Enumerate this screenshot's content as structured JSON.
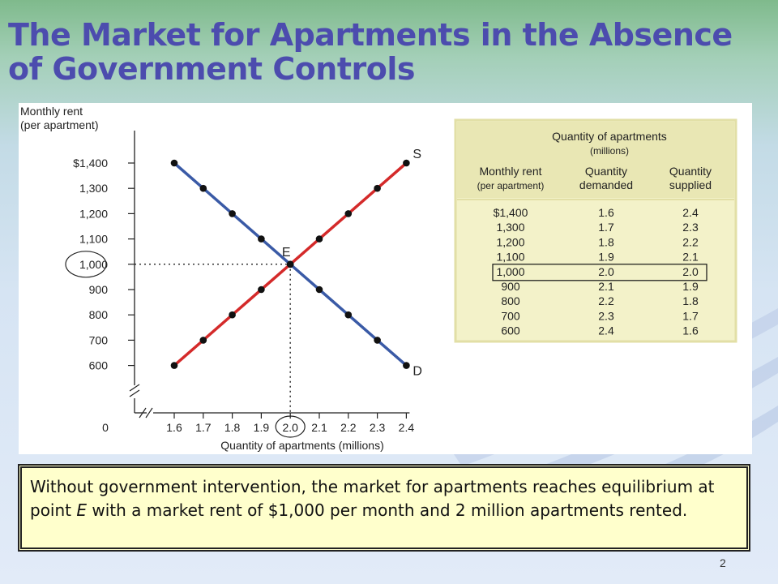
{
  "slide": {
    "title_line1": "The Market for Apartments in the Absence",
    "title_line2": "of Government Controls",
    "page_number": "2"
  },
  "caption": {
    "part1": "Without government intervention, the market for apartments reaches equilibrium at point ",
    "point": "E",
    "part2": " with a market rent of $1,000 per month and 2 million apartments rented."
  },
  "chart_data": [
    {
      "type": "line",
      "ylabel_line1": "Monthly rent",
      "ylabel_line2": "(per apartment)",
      "xlabel": "Quantity of apartments (millions)",
      "x_ticks": [
        "1.6",
        "1.7",
        "1.8",
        "1.9",
        "2.0",
        "2.1",
        "2.2",
        "2.3",
        "2.4"
      ],
      "y_ticks": [
        {
          "value": 600,
          "label": "600"
        },
        {
          "value": 700,
          "label": "700"
        },
        {
          "value": 800,
          "label": "800"
        },
        {
          "value": 900,
          "label": "900"
        },
        {
          "value": 1000,
          "label": "1,000"
        },
        {
          "value": 1100,
          "label": "1,100"
        },
        {
          "value": 1200,
          "label": "1,200"
        },
        {
          "value": 1300,
          "label": "1,300"
        },
        {
          "value": 1400,
          "label": "$1,400"
        }
      ],
      "origin_label": "0",
      "xlim": [
        1.6,
        2.4
      ],
      "ylim": [
        600,
        1400
      ],
      "axis_break": true,
      "series": [
        {
          "name": "D",
          "color": "#3a5aa6",
          "x": [
            1.6,
            1.7,
            1.8,
            1.9,
            2.0,
            2.1,
            2.2,
            2.3,
            2.4
          ],
          "y": [
            1400,
            1300,
            1200,
            1100,
            1000,
            900,
            800,
            700,
            600
          ]
        },
        {
          "name": "S",
          "color": "#d42a2a",
          "x": [
            1.6,
            1.7,
            1.8,
            1.9,
            2.0,
            2.1,
            2.2,
            2.3,
            2.4
          ],
          "y": [
            600,
            700,
            800,
            900,
            1000,
            1100,
            1200,
            1300,
            1400
          ]
        }
      ],
      "equilibrium": {
        "label": "E",
        "x": 2.0,
        "y": 1000
      },
      "highlighted_x_tick": "2.0",
      "highlighted_y_tick": "1,000"
    },
    {
      "type": "table",
      "header_group": "Quantity of apartments",
      "header_group_sub": "(millions)",
      "columns": [
        {
          "line1": "Monthly rent",
          "line2": "(per apartment)"
        },
        {
          "line1": "Quantity",
          "line2": "demanded"
        },
        {
          "line1": "Quantity",
          "line2": "supplied"
        }
      ],
      "rows": [
        [
          "$1,400",
          "1.6",
          "2.4"
        ],
        [
          "1,300",
          "1.7",
          "2.3"
        ],
        [
          "1,200",
          "1.8",
          "2.2"
        ],
        [
          "1,100",
          "1.9",
          "2.1"
        ],
        [
          "1,000",
          "2.0",
          "2.0"
        ],
        [
          "900",
          "2.1",
          "1.9"
        ],
        [
          "800",
          "2.2",
          "1.8"
        ],
        [
          "700",
          "2.3",
          "1.7"
        ],
        [
          "600",
          "2.4",
          "1.6"
        ]
      ],
      "highlighted_row": 4,
      "background": "#f3f2c9",
      "border": "#e2dfa6"
    }
  ]
}
